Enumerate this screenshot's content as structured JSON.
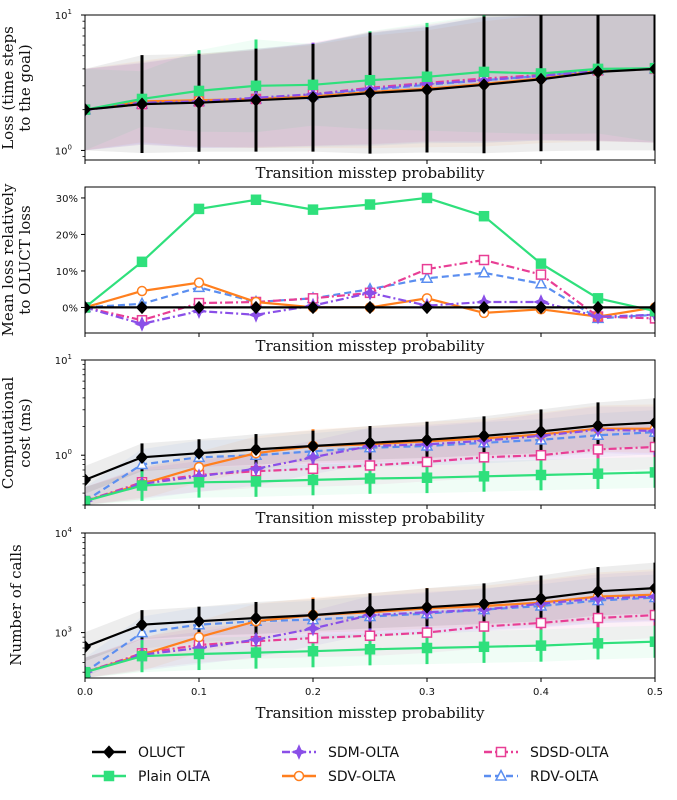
{
  "chart_data": [
    {
      "type": "line",
      "ylabel": "Loss (time steps to the goal)",
      "xlabel": "Transition misstep probability",
      "yscale": "log",
      "ylim": [
        0.85,
        10
      ],
      "xlim": [
        0,
        0.5
      ],
      "yticks": [
        {
          "value": 1,
          "base": "10",
          "exp": "0"
        },
        {
          "value": 10,
          "base": "10",
          "exp": "1"
        }
      ],
      "x": [
        0,
        0.05,
        0.1,
        0.15,
        0.2,
        0.25,
        0.3,
        0.35,
        0.4,
        0.45,
        0.5
      ],
      "series": [
        {
          "name": "OLUCT",
          "values": [
            2.0,
            2.2,
            2.25,
            2.35,
            2.45,
            2.65,
            2.8,
            3.05,
            3.35,
            3.8,
            4.0
          ],
          "err": [
            2.0,
            2.3,
            2.3,
            2.4,
            2.5,
            2.8,
            2.9,
            3.2,
            3.4,
            3.8,
            4.0
          ]
        },
        {
          "name": "Plain OLTA",
          "values": [
            2.0,
            2.4,
            2.75,
            3.0,
            3.05,
            3.3,
            3.5,
            3.8,
            3.7,
            4.0,
            4.05
          ],
          "err": [
            2.0,
            1.6,
            2.0,
            2.2,
            2.0,
            2.3,
            2.5,
            2.8,
            2.8,
            3.0,
            3.5
          ]
        },
        {
          "name": "SDM-OLTA",
          "values": [
            2.0,
            2.25,
            2.3,
            2.45,
            2.6,
            2.85,
            3.1,
            3.3,
            3.55,
            3.85,
            4.0
          ],
          "err": [
            2.0,
            2.0,
            2.2,
            2.3,
            2.4,
            2.6,
            2.7,
            2.9,
            3.0,
            3.3,
            3.5
          ]
        },
        {
          "name": "SDV-OLTA",
          "values": [
            2.0,
            2.3,
            2.35,
            2.4,
            2.5,
            2.7,
            2.85,
            3.1,
            3.4,
            3.85,
            4.0
          ],
          "err": [
            2.0,
            2.0,
            2.2,
            2.3,
            2.4,
            2.6,
            2.7,
            2.9,
            3.0,
            3.3,
            3.5
          ]
        },
        {
          "name": "SDSD-OLTA",
          "values": [
            2.0,
            2.2,
            2.3,
            2.4,
            2.6,
            2.9,
            3.15,
            3.4,
            3.6,
            3.9,
            4.0
          ],
          "err": [
            2.0,
            2.0,
            2.2,
            2.3,
            2.4,
            2.6,
            2.7,
            2.9,
            3.0,
            3.3,
            3.5
          ]
        },
        {
          "name": "RDV-OLTA",
          "values": [
            2.0,
            2.2,
            2.3,
            2.4,
            2.55,
            2.8,
            3.05,
            3.3,
            3.55,
            3.9,
            4.0
          ],
          "err": [
            2.0,
            2.0,
            2.2,
            2.3,
            2.4,
            2.6,
            2.7,
            2.9,
            3.0,
            3.3,
            3.5
          ]
        }
      ]
    },
    {
      "type": "line",
      "ylabel": "Mean loss relatively to OLUCT loss",
      "xlabel": "Transition misstep probability",
      "yscale": "linear",
      "ylim": [
        -7,
        33
      ],
      "xlim": [
        0,
        0.5
      ],
      "yticks": [
        {
          "value": 0,
          "label": "0%"
        },
        {
          "value": 10,
          "label": "10%"
        },
        {
          "value": 20,
          "label": "20%"
        },
        {
          "value": 30,
          "label": "30%"
        }
      ],
      "x": [
        0,
        0.05,
        0.1,
        0.15,
        0.2,
        0.25,
        0.3,
        0.35,
        0.4,
        0.45,
        0.5
      ],
      "series": [
        {
          "name": "OLUCT",
          "values": [
            0,
            0,
            0,
            0,
            0,
            0,
            0,
            0,
            0,
            0,
            0
          ]
        },
        {
          "name": "Plain OLTA",
          "values": [
            0,
            12.5,
            27,
            29.5,
            26.8,
            28.2,
            30,
            25,
            12,
            2.5,
            -1
          ]
        },
        {
          "name": "SDM-OLTA",
          "values": [
            0,
            -4.5,
            -1,
            -2,
            0.5,
            4,
            0.5,
            1.5,
            1.5,
            -2.5,
            -2
          ]
        },
        {
          "name": "SDV-OLTA",
          "values": [
            0,
            4.5,
            6.8,
            1.5,
            0,
            0,
            2.5,
            -1.5,
            -0.5,
            -2.5,
            0
          ]
        },
        {
          "name": "SDSD-OLTA",
          "values": [
            0,
            -3.5,
            1.2,
            1.5,
            2.5,
            4,
            10.5,
            13,
            9,
            -2.5,
            -3
          ]
        },
        {
          "name": "RDV-OLTA",
          "values": [
            0,
            1,
            5.5,
            1.5,
            2.5,
            5,
            8,
            9.5,
            6.5,
            -3,
            -2
          ]
        }
      ]
    },
    {
      "type": "line",
      "ylabel": "Computational cost (ms)",
      "xlabel": "Transition misstep probability",
      "yscale": "log",
      "ylim": [
        0.3,
        10
      ],
      "xlim": [
        0,
        0.5
      ],
      "yticks": [
        {
          "value": 1,
          "base": "10",
          "exp": "0"
        },
        {
          "value": 10,
          "base": "10",
          "exp": "1"
        }
      ],
      "x": [
        0,
        0.05,
        0.1,
        0.15,
        0.2,
        0.25,
        0.3,
        0.35,
        0.4,
        0.45,
        0.5
      ],
      "series": [
        {
          "name": "OLUCT",
          "values": [
            0.55,
            0.95,
            1.05,
            1.15,
            1.25,
            1.35,
            1.45,
            1.6,
            1.78,
            2.05,
            2.2
          ],
          "err": [
            1.4,
            1.4,
            1.4,
            1.45,
            1.45,
            1.5,
            1.55,
            1.6,
            1.7,
            1.75,
            1.8
          ]
        },
        {
          "name": "Plain OLTA",
          "values": [
            0.33,
            0.48,
            0.52,
            0.53,
            0.55,
            0.57,
            0.58,
            0.6,
            0.62,
            0.64,
            0.66
          ],
          "err": [
            1.4,
            1.45,
            1.45,
            1.45,
            1.45,
            1.45,
            1.45,
            1.45,
            1.45,
            1.45,
            1.45
          ]
        },
        {
          "name": "SDM-OLTA",
          "values": [
            0.33,
            0.5,
            0.6,
            0.72,
            0.95,
            1.25,
            1.3,
            1.42,
            1.6,
            1.85,
            1.8
          ],
          "err": [
            1.4,
            1.45,
            1.45,
            1.5,
            1.5,
            1.55,
            1.6,
            1.6,
            1.7,
            1.75,
            1.8
          ]
        },
        {
          "name": "SDV-OLTA",
          "values": [
            0.33,
            0.5,
            0.75,
            1.05,
            1.25,
            1.3,
            1.4,
            1.5,
            1.65,
            1.9,
            1.9
          ],
          "err": [
            1.4,
            1.45,
            1.45,
            1.5,
            1.5,
            1.55,
            1.6,
            1.6,
            1.7,
            1.75,
            1.8
          ]
        },
        {
          "name": "SDSD-OLTA",
          "values": [
            0.33,
            0.52,
            0.62,
            0.68,
            0.72,
            0.78,
            0.85,
            0.95,
            1.0,
            1.15,
            1.22
          ],
          "err": [
            1.4,
            1.45,
            1.5,
            1.5,
            1.55,
            1.6,
            1.6,
            1.65,
            1.65,
            1.7,
            1.7
          ]
        },
        {
          "name": "RDV-OLTA",
          "values": [
            0.33,
            0.8,
            0.95,
            1.0,
            1.1,
            1.2,
            1.25,
            1.35,
            1.45,
            1.62,
            1.75
          ],
          "err": [
            1.4,
            1.45,
            1.5,
            1.5,
            1.55,
            1.6,
            1.6,
            1.65,
            1.65,
            1.7,
            1.7
          ]
        }
      ]
    },
    {
      "type": "line",
      "ylabel": "Number of calls",
      "xlabel": "Transition misstep probability",
      "yscale": "log",
      "ylim": [
        350,
        10000
      ],
      "xlim": [
        0,
        0.5
      ],
      "xticks": [
        "0.0",
        "0.1",
        "0.2",
        "0.3",
        "0.4",
        "0.5"
      ],
      "yticks": [
        {
          "value": 1000,
          "base": "10",
          "exp": "3"
        },
        {
          "value": 10000,
          "base": "10",
          "exp": "4"
        }
      ],
      "x": [
        0,
        0.05,
        0.1,
        0.15,
        0.2,
        0.25,
        0.3,
        0.35,
        0.4,
        0.45,
        0.5
      ],
      "series": [
        {
          "name": "OLUCT",
          "values": [
            720,
            1200,
            1300,
            1400,
            1500,
            1650,
            1800,
            1950,
            2200,
            2600,
            2800
          ],
          "err": [
            1.4,
            1.4,
            1.4,
            1.45,
            1.45,
            1.5,
            1.55,
            1.6,
            1.7,
            1.75,
            1.8
          ]
        },
        {
          "name": "Plain OLTA",
          "values": [
            400,
            580,
            610,
            630,
            650,
            680,
            700,
            720,
            740,
            780,
            810
          ],
          "err": [
            1.4,
            1.45,
            1.45,
            1.45,
            1.45,
            1.45,
            1.45,
            1.45,
            1.45,
            1.45,
            1.45
          ]
        },
        {
          "name": "SDM-OLTA",
          "values": [
            400,
            600,
            700,
            850,
            1100,
            1500,
            1600,
            1700,
            1950,
            2200,
            2300
          ],
          "err": [
            1.4,
            1.45,
            1.45,
            1.5,
            1.5,
            1.55,
            1.6,
            1.6,
            1.7,
            1.75,
            1.8
          ]
        },
        {
          "name": "SDV-OLTA",
          "values": [
            400,
            600,
            900,
            1300,
            1500,
            1600,
            1750,
            1850,
            2000,
            2300,
            2400
          ],
          "err": [
            1.4,
            1.45,
            1.45,
            1.5,
            1.5,
            1.55,
            1.6,
            1.6,
            1.7,
            1.75,
            1.8
          ]
        },
        {
          "name": "SDSD-OLTA",
          "values": [
            400,
            620,
            750,
            820,
            880,
            930,
            1000,
            1150,
            1250,
            1400,
            1500
          ],
          "err": [
            1.4,
            1.45,
            1.5,
            1.5,
            1.55,
            1.6,
            1.6,
            1.65,
            1.65,
            1.7,
            1.7
          ]
        },
        {
          "name": "RDV-OLTA",
          "values": [
            400,
            1000,
            1200,
            1300,
            1350,
            1450,
            1550,
            1700,
            1850,
            2100,
            2250
          ],
          "err": [
            1.4,
            1.45,
            1.5,
            1.5,
            1.55,
            1.6,
            1.6,
            1.65,
            1.65,
            1.7,
            1.7
          ]
        }
      ]
    }
  ],
  "legend": {
    "placement": "bottom",
    "entries": [
      "OLUCT",
      "Plain OLTA",
      "SDM-OLTA",
      "SDV-OLTA",
      "SDSD-OLTA",
      "RDV-OLTA"
    ]
  },
  "styles": {
    "OLUCT": {
      "color": "#000000",
      "dash": "solid",
      "marker": "diamond",
      "fill": "filled"
    },
    "Plain OLTA": {
      "color": "#2fe07c",
      "dash": "solid",
      "marker": "square",
      "fill": "filled"
    },
    "SDM-OLTA": {
      "color": "#8a4fe8",
      "dash": "dashdot",
      "marker": "star",
      "fill": "filled"
    },
    "SDV-OLTA": {
      "color": "#ff7f1e",
      "dash": "solid",
      "marker": "circle",
      "fill": "open"
    },
    "SDSD-OLTA": {
      "color": "#e83e95",
      "dash": "dashdot",
      "marker": "square",
      "fill": "open"
    },
    "RDV-OLTA": {
      "color": "#5b8ef0",
      "dash": "dashed",
      "marker": "triangle",
      "fill": "open"
    }
  }
}
